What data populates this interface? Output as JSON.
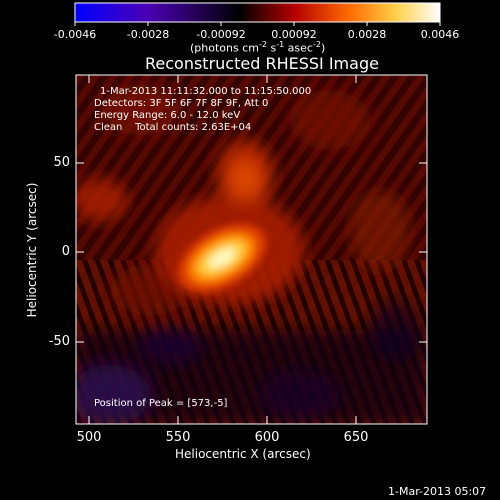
{
  "colorbar": {
    "tick_labels": [
      "-0.0046",
      "-0.0028",
      "-0.00092",
      "0.00092",
      "0.0028",
      "0.0046"
    ],
    "units_text": "(photons cm",
    "units_exp1": "-2",
    "units_mid1": " s",
    "units_exp2": "-1",
    "units_mid2": " asec",
    "units_exp3": "-2",
    "units_end": ")",
    "gradient_colors": [
      "#0000ff",
      "#4b00b4",
      "#000000",
      "#b40000",
      "#ff7800",
      "#ffe650",
      "#ffffff"
    ]
  },
  "plot": {
    "title": "Reconstructed RHESSI Image",
    "xlabel": "Heliocentric X (arcsec)",
    "ylabel": "Heliocentric Y (arcsec)",
    "x_ticks": [
      "500",
      "550",
      "600",
      "650"
    ],
    "y_ticks": [
      "50",
      "0",
      "-50"
    ],
    "annotations": {
      "time_range": "1-Mar-2013 11:11:32.000 to 11:15:50.000",
      "detectors": "Detectors: 3F 5F 6F 7F 8F 9F, Att 0",
      "energy": "Energy Range: 6.0 - 12.0 keV",
      "clean": "Clean    Total counts: 2.63E+04",
      "peak": "Position of Peak = [573,-5]"
    }
  },
  "footer": {
    "timestamp": "1-Mar-2013 05:07"
  }
}
